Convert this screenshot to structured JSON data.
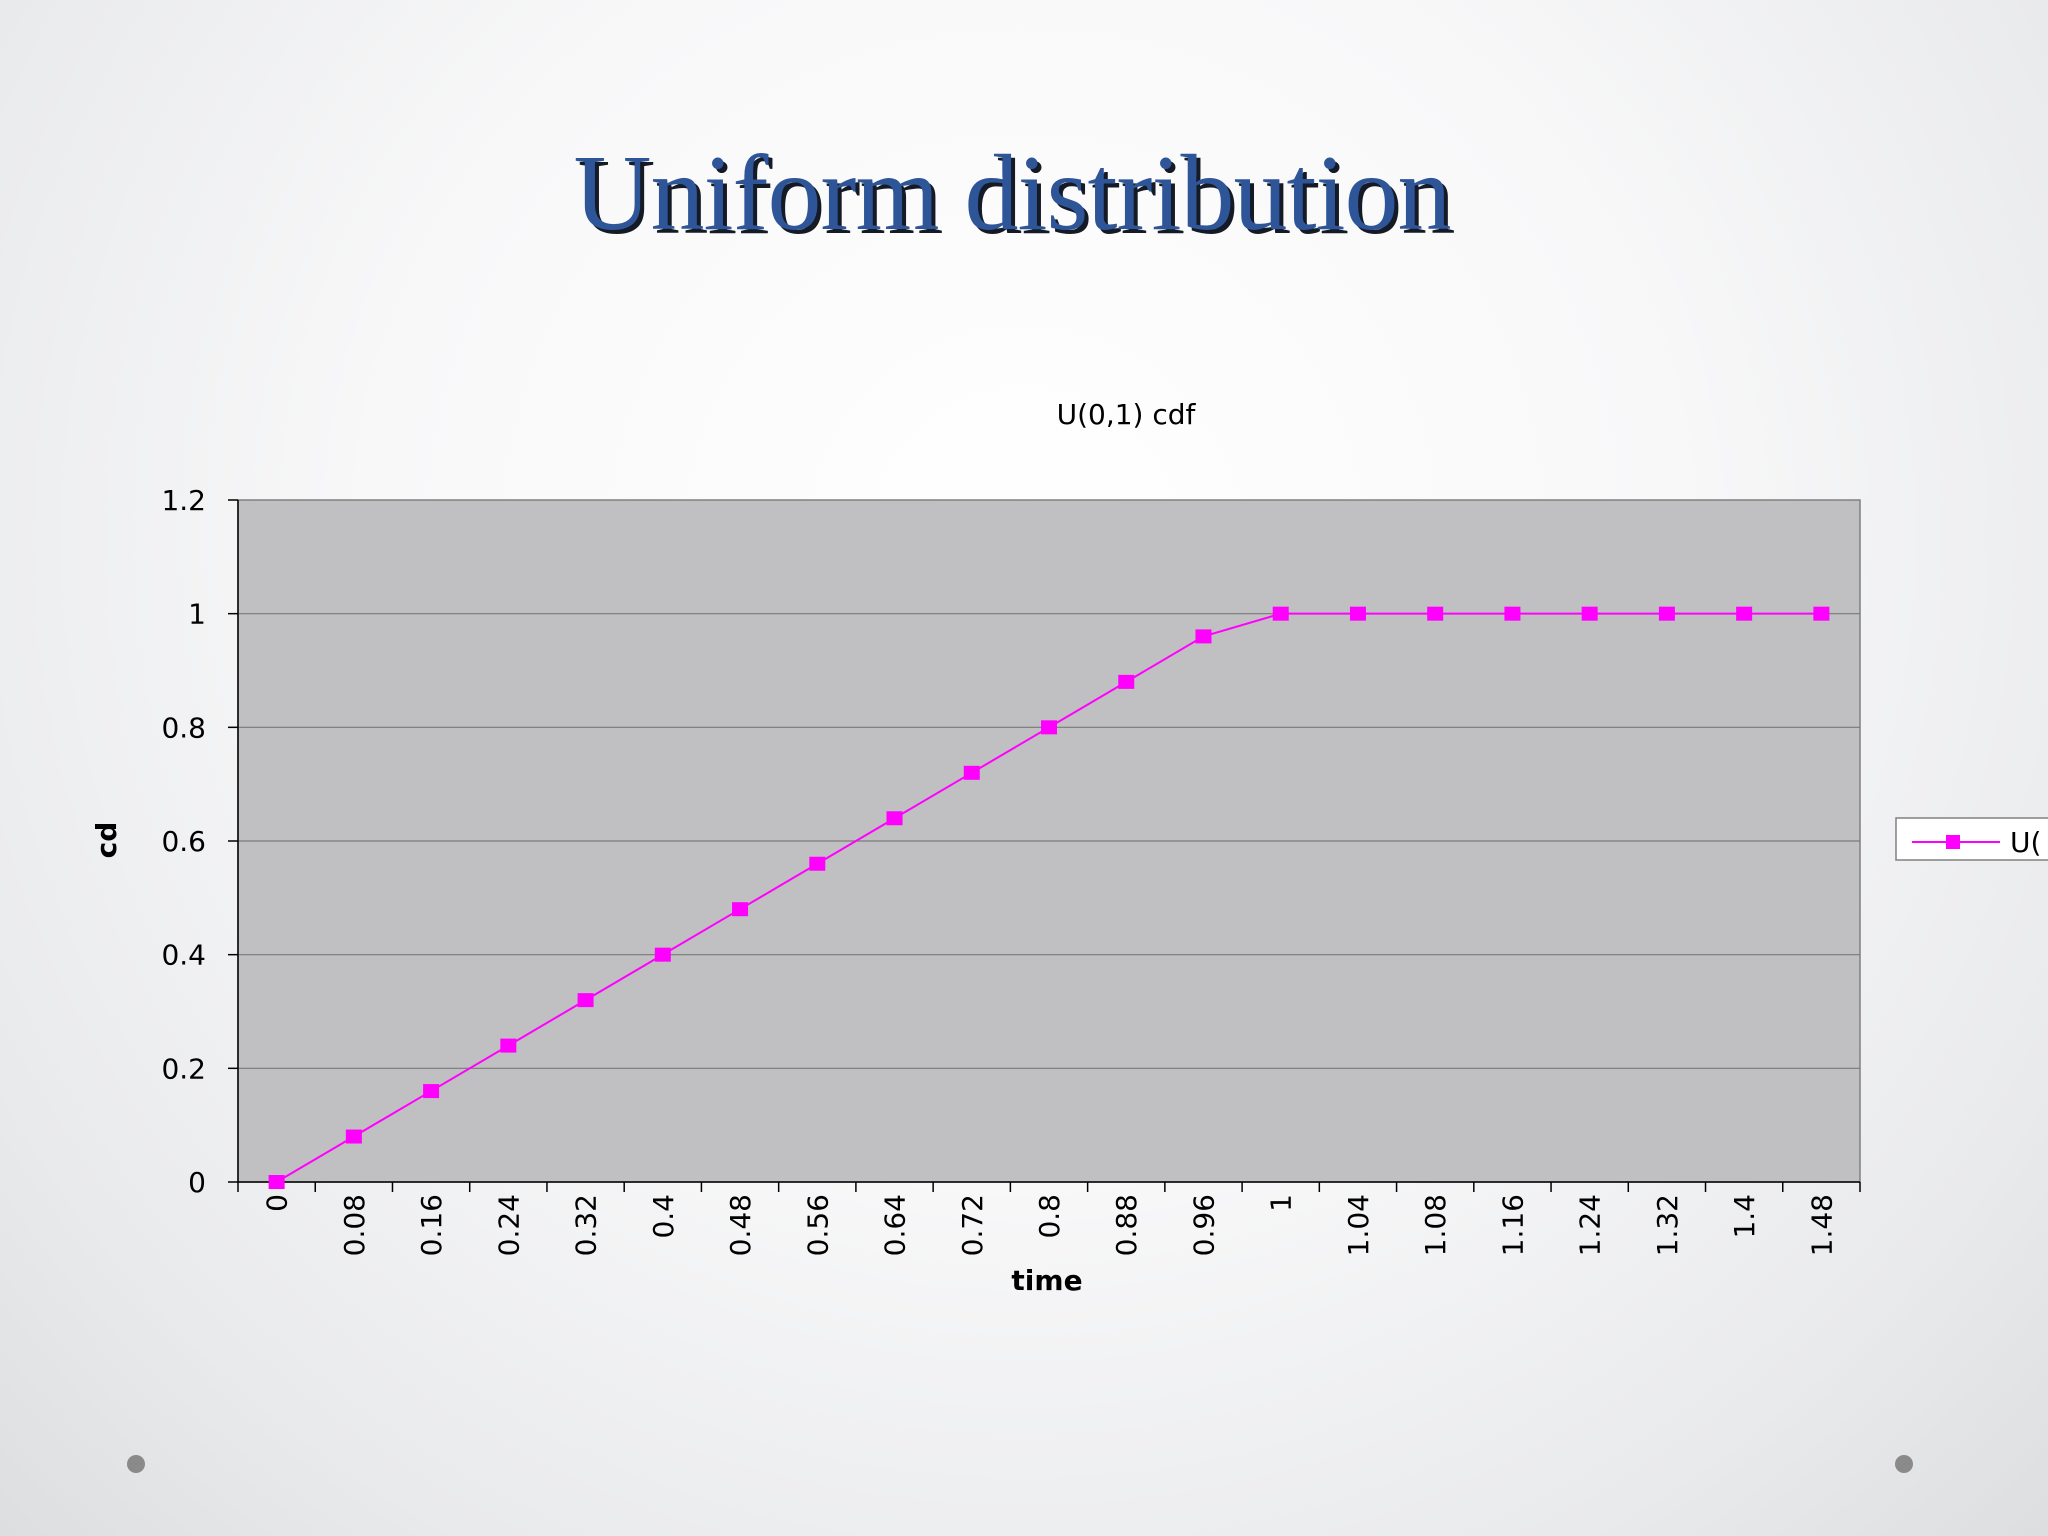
{
  "slide": {
    "title": "Uniform distribution"
  },
  "colors": {
    "title": "#2e5597",
    "plot_area": "#c0bfc1",
    "series": "#ff00ff",
    "gridline": "#7a7a7a"
  },
  "chart_data": {
    "type": "line",
    "title": "U(0,1) cdf",
    "xlabel": "time",
    "ylabel": "cd",
    "categories": [
      "0",
      "0.08",
      "0.16",
      "0.24",
      "0.32",
      "0.4",
      "0.48",
      "0.56",
      "0.64",
      "0.72",
      "0.8",
      "0.88",
      "0.96",
      "1",
      "1.04",
      "1.08",
      "1.16",
      "1.24",
      "1.32",
      "1.4",
      "1.48"
    ],
    "series": [
      {
        "name": "U(",
        "marker": "square",
        "values": [
          0,
          0.08,
          0.16,
          0.24,
          0.32,
          0.4,
          0.48,
          0.56,
          0.64,
          0.72,
          0.8,
          0.88,
          0.96,
          1,
          1,
          1,
          1,
          1,
          1,
          1,
          1
        ]
      }
    ],
    "ylim": [
      0,
      1.2
    ],
    "yticks": [
      "0",
      "0.2",
      "0.4",
      "0.6",
      "0.8",
      "1",
      "1.2"
    ],
    "grid": true,
    "legend": "right"
  }
}
